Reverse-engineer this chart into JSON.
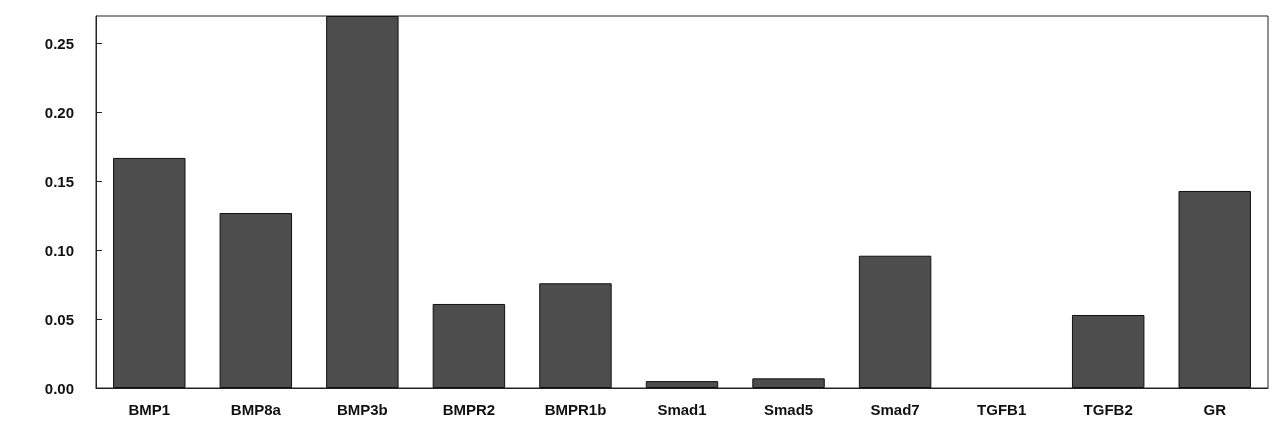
{
  "chart_data": {
    "type": "bar",
    "categories": [
      "BMP1",
      "BMP8a",
      "BMP3b",
      "BMPR2",
      "BMPR1b",
      "Smad1",
      "Smad5",
      "Smad7",
      "TGFB1",
      "TGFB2",
      "GR"
    ],
    "values": [
      0.167,
      0.127,
      0.27,
      0.061,
      0.076,
      0.005,
      0.007,
      0.096,
      0,
      0.053,
      0.143
    ],
    "color": "#4d4d4d",
    "ylim": [
      0,
      0.27
    ],
    "yticks": [
      {
        "value": 0,
        "label": "0.00"
      },
      0.05,
      {
        "value": 0.1,
        "label": "0.10"
      },
      0.15,
      {
        "value": 0.2,
        "label": "0.20"
      },
      0.25
    ],
    "grid": false
  }
}
